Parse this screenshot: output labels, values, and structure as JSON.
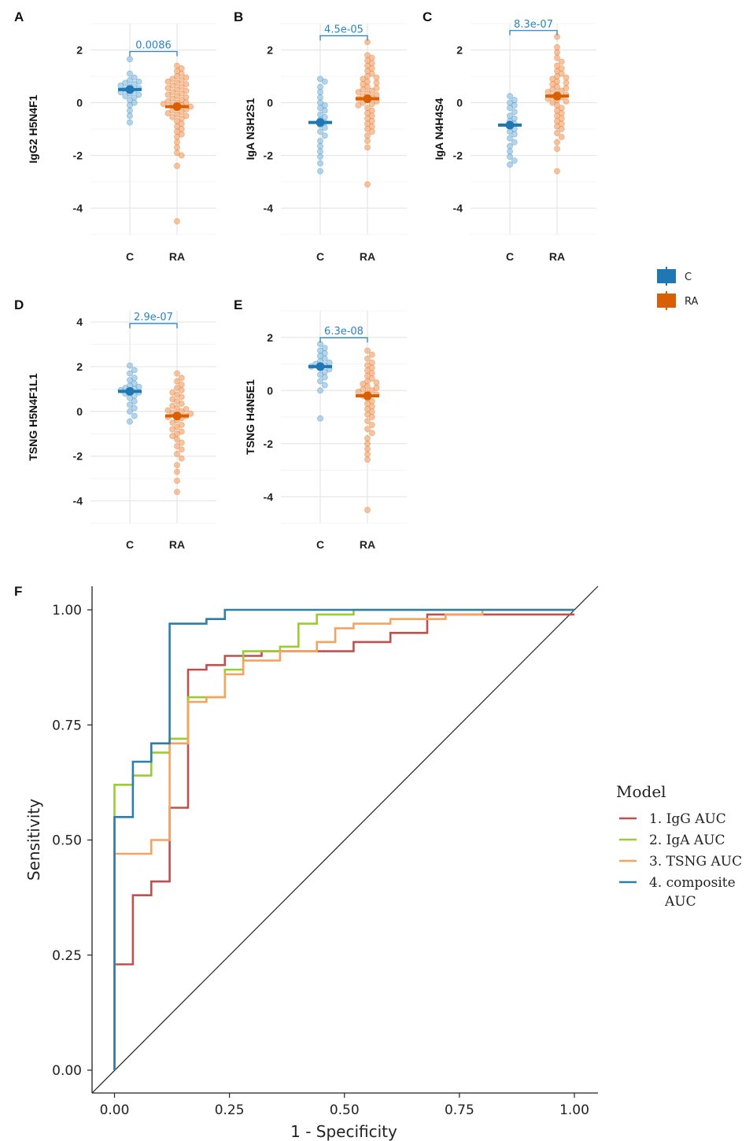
{
  "colors": {
    "C": "#1f78b4",
    "RA": "#d95f02",
    "C_light": "#8cbfe0",
    "RA_light": "#f2a470",
    "bracket": "#2b83c6"
  },
  "legend_groups": {
    "items": [
      {
        "key": "C",
        "label": "C"
      },
      {
        "key": "RA",
        "label": "RA"
      }
    ]
  },
  "chart_data": [
    {
      "type": "scatter",
      "panel": "A",
      "ylabel": "IgG2 H5N4F1",
      "categories": [
        "C",
        "RA"
      ],
      "ylim": [
        -5,
        3
      ],
      "yticks": [
        2,
        0,
        -2,
        -4
      ],
      "pvalue": "0.0086",
      "means": {
        "C": 0.5,
        "RA": -0.15
      },
      "points": {
        "C": [
          1.65,
          1.1,
          0.95,
          0.85,
          0.8,
          0.75,
          0.7,
          0.65,
          0.6,
          0.55,
          0.5,
          0.45,
          0.4,
          0.35,
          0.3,
          0.25,
          0.2,
          0.1,
          0.0,
          -0.1,
          -0.3,
          -0.5,
          -0.75
        ],
        "RA": [
          1.4,
          1.3,
          1.2,
          1.1,
          1.0,
          0.95,
          0.9,
          0.85,
          0.8,
          0.75,
          0.7,
          0.65,
          0.6,
          0.55,
          0.5,
          0.45,
          0.4,
          0.35,
          0.3,
          0.25,
          0.2,
          0.15,
          0.1,
          0.05,
          0.0,
          0.0,
          -0.05,
          -0.1,
          -0.1,
          -0.15,
          -0.2,
          -0.25,
          -0.3,
          -0.35,
          -0.4,
          -0.45,
          -0.5,
          -0.55,
          -0.6,
          -0.7,
          -0.8,
          -0.9,
          -1.0,
          -1.1,
          -1.2,
          -1.3,
          -1.5,
          -1.7,
          -1.9,
          -2.0,
          -2.4,
          -4.5
        ]
      }
    },
    {
      "type": "scatter",
      "panel": "B",
      "ylabel": "IgA N3H2S1",
      "categories": [
        "C",
        "RA"
      ],
      "ylim": [
        -5,
        3
      ],
      "yticks": [
        2,
        0,
        -2,
        -4
      ],
      "pvalue": "4.5e-05",
      "means": {
        "C": -0.75,
        "RA": 0.15
      },
      "points": {
        "C": [
          0.9,
          0.8,
          0.6,
          0.4,
          0.2,
          0.0,
          -0.1,
          -0.2,
          -0.3,
          -0.45,
          -0.55,
          -0.65,
          -0.75,
          -0.85,
          -0.95,
          -1.1,
          -1.25,
          -1.45,
          -1.65,
          -1.85,
          -2.05,
          -2.3,
          -2.6
        ],
        "RA": [
          2.3,
          1.8,
          1.7,
          1.6,
          1.5,
          1.4,
          1.3,
          1.2,
          1.1,
          1.0,
          0.95,
          0.9,
          0.8,
          0.75,
          0.7,
          0.6,
          0.55,
          0.5,
          0.45,
          0.4,
          0.35,
          0.3,
          0.25,
          0.2,
          0.15,
          0.1,
          0.05,
          0.0,
          -0.05,
          -0.1,
          -0.2,
          -0.3,
          -0.4,
          -0.5,
          -0.6,
          -0.7,
          -0.8,
          -0.9,
          -1.0,
          -1.1,
          -1.25,
          -1.45,
          -1.7,
          -3.1
        ]
      }
    },
    {
      "type": "scatter",
      "panel": "C",
      "ylabel": "IgA N4H4S4",
      "categories": [
        "C",
        "RA"
      ],
      "ylim": [
        -5,
        3
      ],
      "yticks": [
        2,
        0,
        -2,
        -4
      ],
      "pvalue": "8.3e-07",
      "means": {
        "C": -0.85,
        "RA": 0.25
      },
      "points": {
        "C": [
          0.25,
          0.1,
          0.0,
          -0.1,
          -0.2,
          -0.35,
          -0.5,
          -0.6,
          -0.7,
          -0.8,
          -0.9,
          -1.0,
          -1.1,
          -1.2,
          -1.35,
          -1.5,
          -1.65,
          -1.85,
          -2.05,
          -2.2,
          -2.35
        ],
        "RA": [
          2.5,
          2.1,
          1.9,
          1.7,
          1.55,
          1.4,
          1.3,
          1.2,
          1.1,
          1.0,
          0.95,
          0.9,
          0.8,
          0.75,
          0.7,
          0.6,
          0.55,
          0.5,
          0.45,
          0.4,
          0.35,
          0.3,
          0.25,
          0.2,
          0.15,
          0.1,
          0.05,
          0.0,
          -0.1,
          -0.2,
          -0.3,
          -0.4,
          -0.5,
          -0.6,
          -0.7,
          -0.8,
          -0.9,
          -1.0,
          -1.15,
          -1.3,
          -1.5,
          -1.75,
          -2.6
        ]
      }
    },
    {
      "type": "scatter",
      "panel": "D",
      "ylabel": "TSNG H5N4F1L1",
      "categories": [
        "C",
        "RA"
      ],
      "ylim": [
        -5,
        4.5
      ],
      "yticks": [
        4,
        2,
        0,
        -2,
        -4
      ],
      "pvalue": "2.9e-07",
      "means": {
        "C": 0.9,
        "RA": -0.2
      },
      "points": {
        "C": [
          2.05,
          1.85,
          1.7,
          1.5,
          1.4,
          1.25,
          1.15,
          1.1,
          1.05,
          1.0,
          0.95,
          0.9,
          0.85,
          0.8,
          0.7,
          0.6,
          0.45,
          0.3,
          0.15,
          0.0,
          -0.2,
          -0.45
        ],
        "RA": [
          1.7,
          1.5,
          1.35,
          1.2,
          1.05,
          0.95,
          0.85,
          0.75,
          0.65,
          0.55,
          0.45,
          0.35,
          0.25,
          0.15,
          0.1,
          0.05,
          0.0,
          -0.05,
          -0.1,
          -0.15,
          -0.2,
          -0.25,
          -0.3,
          -0.4,
          -0.5,
          -0.6,
          -0.7,
          -0.8,
          -0.9,
          -1.0,
          -1.1,
          -1.25,
          -1.4,
          -1.55,
          -1.7,
          -1.9,
          -2.1,
          -2.4,
          -2.7,
          -3.1,
          -3.6
        ]
      }
    },
    {
      "type": "scatter",
      "panel": "E",
      "ylabel": "TSNG H4N5E1",
      "categories": [
        "C",
        "RA"
      ],
      "ylim": [
        -5,
        3
      ],
      "yticks": [
        2,
        0,
        -2,
        -4
      ],
      "pvalue": "6.3e-08",
      "means": {
        "C": 0.9,
        "RA": -0.2
      },
      "points": {
        "C": [
          1.75,
          1.6,
          1.5,
          1.4,
          1.3,
          1.2,
          1.1,
          1.05,
          1.0,
          0.95,
          0.9,
          0.85,
          0.8,
          0.7,
          0.6,
          0.5,
          0.35,
          0.2,
          0.0,
          -1.05
        ],
        "RA": [
          1.5,
          1.35,
          1.2,
          1.05,
          0.95,
          0.85,
          0.75,
          0.65,
          0.55,
          0.45,
          0.35,
          0.3,
          0.25,
          0.15,
          0.1,
          0.05,
          0.0,
          -0.05,
          -0.1,
          -0.15,
          -0.2,
          -0.3,
          -0.4,
          -0.5,
          -0.6,
          -0.7,
          -0.8,
          -0.9,
          -1.0,
          -1.15,
          -1.3,
          -1.45,
          -1.6,
          -1.8,
          -2.0,
          -2.2,
          -2.4,
          -2.6,
          -4.5
        ]
      }
    },
    {
      "type": "line",
      "panel": "F",
      "xlabel": "1 - Specificity",
      "ylabel": "Sensitivity",
      "xlim": [
        0,
        1
      ],
      "ylim": [
        0,
        1
      ],
      "xticks": [
        "0.00",
        "0.25",
        "0.50",
        "0.75",
        "1.00"
      ],
      "yticks": [
        "0.00",
        "0.25",
        "0.50",
        "0.75",
        "1.00"
      ],
      "legend_title": "Model",
      "series": [
        {
          "name": "1. IgG AUC",
          "color": "#c0504d",
          "points": [
            [
              0,
              0
            ],
            [
              0,
              0.23
            ],
            [
              0.04,
              0.23
            ],
            [
              0.04,
              0.38
            ],
            [
              0.08,
              0.38
            ],
            [
              0.08,
              0.41
            ],
            [
              0.12,
              0.41
            ],
            [
              0.12,
              0.57
            ],
            [
              0.16,
              0.57
            ],
            [
              0.16,
              0.87
            ],
            [
              0.2,
              0.87
            ],
            [
              0.2,
              0.88
            ],
            [
              0.24,
              0.88
            ],
            [
              0.24,
              0.9
            ],
            [
              0.32,
              0.9
            ],
            [
              0.32,
              0.91
            ],
            [
              0.52,
              0.91
            ],
            [
              0.52,
              0.93
            ],
            [
              0.6,
              0.93
            ],
            [
              0.6,
              0.95
            ],
            [
              0.68,
              0.95
            ],
            [
              0.68,
              0.99
            ],
            [
              1.0,
              0.99
            ]
          ]
        },
        {
          "name": "2. IgA AUC",
          "color": "#9acd32",
          "points": [
            [
              0,
              0
            ],
            [
              0,
              0.55
            ],
            [
              0,
              0.62
            ],
            [
              0.04,
              0.62
            ],
            [
              0.04,
              0.64
            ],
            [
              0.08,
              0.64
            ],
            [
              0.08,
              0.69
            ],
            [
              0.12,
              0.69
            ],
            [
              0.12,
              0.72
            ],
            [
              0.16,
              0.72
            ],
            [
              0.16,
              0.81
            ],
            [
              0.24,
              0.81
            ],
            [
              0.24,
              0.87
            ],
            [
              0.28,
              0.87
            ],
            [
              0.28,
              0.91
            ],
            [
              0.36,
              0.91
            ],
            [
              0.36,
              0.92
            ],
            [
              0.4,
              0.92
            ],
            [
              0.4,
              0.97
            ],
            [
              0.44,
              0.97
            ],
            [
              0.44,
              0.99
            ],
            [
              0.52,
              0.99
            ],
            [
              0.52,
              1.0
            ],
            [
              1.0,
              1.0
            ]
          ]
        },
        {
          "name": "3. TSNG AUC",
          "color": "#f4a460",
          "points": [
            [
              0,
              0
            ],
            [
              0,
              0.47
            ],
            [
              0.08,
              0.47
            ],
            [
              0.08,
              0.5
            ],
            [
              0.12,
              0.5
            ],
            [
              0.12,
              0.71
            ],
            [
              0.16,
              0.71
            ],
            [
              0.16,
              0.8
            ],
            [
              0.2,
              0.8
            ],
            [
              0.2,
              0.81
            ],
            [
              0.24,
              0.81
            ],
            [
              0.24,
              0.86
            ],
            [
              0.28,
              0.86
            ],
            [
              0.28,
              0.89
            ],
            [
              0.36,
              0.89
            ],
            [
              0.36,
              0.91
            ],
            [
              0.44,
              0.91
            ],
            [
              0.44,
              0.93
            ],
            [
              0.48,
              0.93
            ],
            [
              0.48,
              0.96
            ],
            [
              0.52,
              0.96
            ],
            [
              0.52,
              0.97
            ],
            [
              0.6,
              0.97
            ],
            [
              0.6,
              0.98
            ],
            [
              0.72,
              0.98
            ],
            [
              0.72,
              0.99
            ],
            [
              0.8,
              0.99
            ],
            [
              0.8,
              1.0
            ],
            [
              1.0,
              1.0
            ]
          ]
        },
        {
          "name": "4. composite AUC",
          "color": "#2c7fa8",
          "points": [
            [
              0,
              0
            ],
            [
              0,
              0.55
            ],
            [
              0.04,
              0.55
            ],
            [
              0.04,
              0.67
            ],
            [
              0.08,
              0.67
            ],
            [
              0.08,
              0.71
            ],
            [
              0.12,
              0.71
            ],
            [
              0.12,
              0.97
            ],
            [
              0.2,
              0.97
            ],
            [
              0.2,
              0.98
            ],
            [
              0.24,
              0.98
            ],
            [
              0.24,
              1.0
            ],
            [
              1.0,
              1.0
            ]
          ]
        }
      ],
      "legend_lines": [
        [
          "1. IgG AUC"
        ],
        [
          "2. IgA AUC"
        ],
        [
          "3. TSNG AUC"
        ],
        [
          "4. composite",
          "AUC"
        ]
      ]
    }
  ]
}
